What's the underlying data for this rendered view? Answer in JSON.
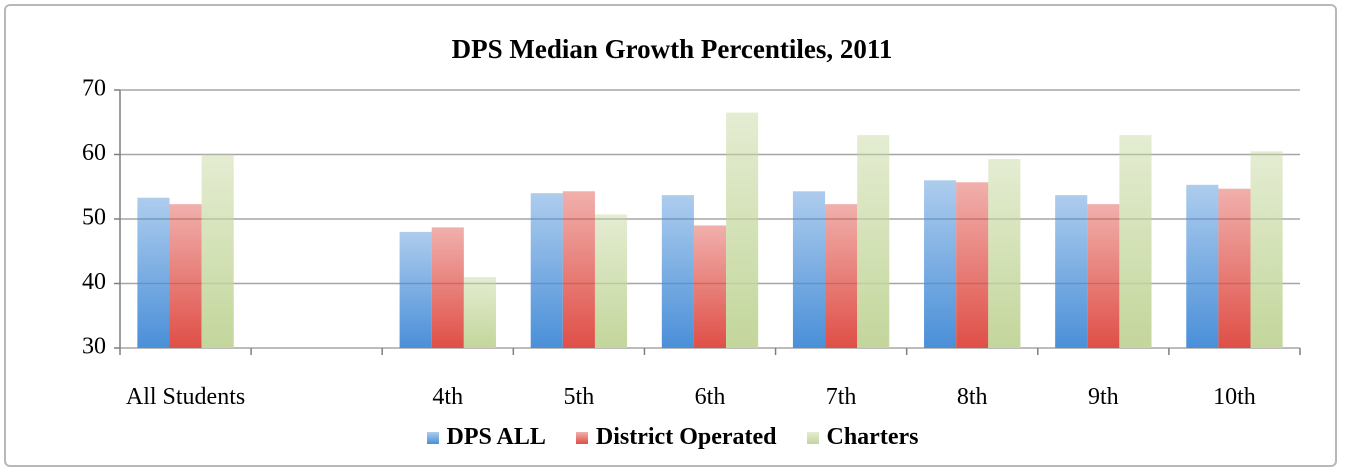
{
  "chart_data": {
    "type": "bar",
    "title": "DPS Median Growth Percentiles, 2011",
    "categories": [
      "All Students",
      null,
      "4th",
      "5th",
      "6th",
      "7th",
      "8th",
      "9th",
      "10th"
    ],
    "series": [
      {
        "name": "DPS ALL",
        "color": "#4a8fd8",
        "values": [
          53.3,
          null,
          48,
          54,
          53.7,
          54.3,
          56,
          53.7,
          55.3
        ]
      },
      {
        "name": "District Operated",
        "color": "#df4f47",
        "values": [
          52.3,
          null,
          48.7,
          54.3,
          49,
          52.3,
          55.7,
          52.3,
          54.7
        ]
      },
      {
        "name": "Charters",
        "color": "#c3d69b",
        "values": [
          60,
          null,
          41,
          50.7,
          66.5,
          63,
          59.3,
          63,
          60.5
        ]
      }
    ],
    "ylim": [
      30,
      70
    ],
    "yticks": [
      30,
      40,
      50,
      60,
      70
    ],
    "grid": true,
    "legend": "bottom"
  }
}
